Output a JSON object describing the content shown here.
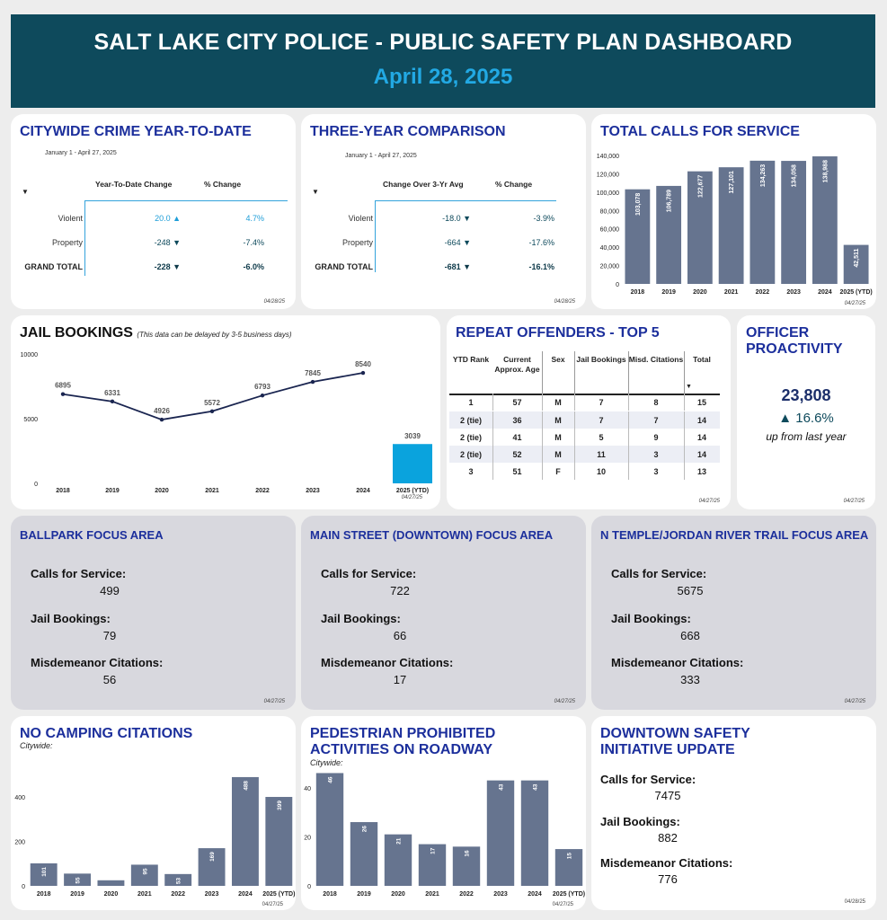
{
  "header": {
    "title": "SALT LAKE CITY POLICE - PUBLIC SAFETY PLAN DASHBOARD",
    "date": "April 28, 2025"
  },
  "ytd": {
    "title": "CITYWIDE CRIME YEAR-TO-DATE",
    "range": "January 1 - April 27, 2025",
    "col1": "Year-To-Date Change",
    "col2": "% Change",
    "rows": [
      {
        "label": "Violent",
        "change": "20.0",
        "pct": "4.7%",
        "dir": "up"
      },
      {
        "label": "Property",
        "change": "-248",
        "pct": "-7.4%",
        "dir": "down"
      },
      {
        "label": "GRAND TOTAL",
        "change": "-228",
        "pct": "-6.0%",
        "dir": "down"
      }
    ],
    "footer": "04/28/25"
  },
  "threeyr": {
    "title": "THREE-YEAR COMPARISON",
    "range": "January 1 - April 27, 2025",
    "col1": "Change Over 3-Yr Avg",
    "col2": "% Change",
    "rows": [
      {
        "label": "Violent",
        "change": "-18.0",
        "pct": "-3.9%",
        "dir": "down"
      },
      {
        "label": "Property",
        "change": "-664",
        "pct": "-17.6%",
        "dir": "down"
      },
      {
        "label": "GRAND TOTAL",
        "change": "-681",
        "pct": "-16.1%",
        "dir": "down"
      }
    ],
    "footer": "04/28/25"
  },
  "repeat": {
    "title": "REPEAT OFFENDERS - TOP 5",
    "headers": [
      "YTD Rank",
      "Current Approx. Age",
      "Sex",
      "Jail Bookings",
      "Misd. Citations",
      "Total"
    ],
    "rows": [
      [
        "1",
        "57",
        "M",
        "7",
        "8",
        "15"
      ],
      [
        "2 (tie)",
        "36",
        "M",
        "7",
        "7",
        "14"
      ],
      [
        "2 (tie)",
        "41",
        "M",
        "5",
        "9",
        "14"
      ],
      [
        "2 (tie)",
        "52",
        "M",
        "11",
        "3",
        "14"
      ],
      [
        "3",
        "51",
        "F",
        "10",
        "3",
        "13"
      ]
    ],
    "footer": "04/27/25"
  },
  "proactivity": {
    "title": "OFFICER PROACTIVITY",
    "value": "23,808",
    "change": "▲ 16.6%",
    "note": "up from last year",
    "footer": "04/27/25"
  },
  "focus_areas": [
    {
      "title": "BALLPARK FOCUS AREA",
      "calls_label": "Calls for Service:",
      "calls": "499",
      "book_label": "Jail Bookings:",
      "bookings": "79",
      "cit_label": "Misdemeanor Citations:",
      "citations": "56",
      "footer": "04/27/25"
    },
    {
      "title": "MAIN STREET (DOWNTOWN) FOCUS AREA",
      "calls_label": "Calls for Service:",
      "calls": "722",
      "book_label": "Jail Bookings:",
      "bookings": "66",
      "cit_label": "Misdemeanor Citations:",
      "citations": "17",
      "footer": "04/27/25"
    },
    {
      "title": "N TEMPLE/JORDAN RIVER TRAIL FOCUS AREA",
      "calls_label": "Calls for Service:",
      "calls": "5675",
      "book_label": "Jail Bookings:",
      "bookings": "668",
      "cit_label": "Misdemeanor Citations:",
      "citations": "333",
      "footer": "04/27/25"
    }
  ],
  "downtown": {
    "title": "DOWNTOWN SAFETY INITIATIVE UPDATE",
    "calls_label": "Calls for Service:",
    "calls": "7475",
    "book_label": "Jail Bookings:",
    "bookings": "882",
    "cit_label": "Misdemeanor Citations:",
    "citations": "776",
    "footer": "04/28/25"
  },
  "chart_data": [
    {
      "id": "calls",
      "type": "bar",
      "title": "TOTAL CALLS FOR SERVICE",
      "categories": [
        "2018",
        "2019",
        "2020",
        "2021",
        "2022",
        "2023",
        "2024",
        "2025 (YTD)"
      ],
      "values": [
        103078,
        106789,
        122677,
        127101,
        134263,
        134058,
        138988,
        42511
      ],
      "labels": [
        "103,078",
        "106,789",
        "122,677",
        "127,101",
        "134,263",
        "134,058",
        "138,988",
        "42,511"
      ],
      "yticks": [
        "0",
        "20,000",
        "40,000",
        "60,000",
        "80,000",
        "100,000",
        "120,000",
        "140,000"
      ],
      "ylim": [
        0,
        140000
      ],
      "color": "#66748f",
      "footer": "04/27/25"
    },
    {
      "id": "jail",
      "type": "line",
      "title": "JAIL BOOKINGS",
      "subtitle": "(This data can be delayed by 3-5 business days)",
      "categories": [
        "2018",
        "2019",
        "2020",
        "2021",
        "2022",
        "2023",
        "2024"
      ],
      "values": [
        6895,
        6331,
        4926,
        5572,
        6793,
        7845,
        8540
      ],
      "ytd_category": "2025 (YTD)",
      "ytd_value": 3039,
      "yticks": [
        "0",
        "5000",
        "10000"
      ],
      "ylim": [
        0,
        10000
      ],
      "line_color": "#1a2550",
      "bar_color": "#0aa3dd",
      "footer": "04/27/25"
    },
    {
      "id": "camping",
      "type": "bar",
      "title": "NO CAMPING CITATIONS",
      "subtitle": "Citywide:",
      "categories": [
        "2018",
        "2019",
        "2020",
        "2021",
        "2022",
        "2023",
        "2024",
        "2025 (YTD)"
      ],
      "values": [
        101,
        55,
        25,
        95,
        53,
        169,
        488,
        399
      ],
      "labels": [
        "101",
        "55",
        "",
        "95",
        "53",
        "169",
        "488",
        "399"
      ],
      "yticks": [
        "0",
        "200",
        "400"
      ],
      "ylim": [
        0,
        520
      ],
      "color": "#66748f",
      "footer": "04/27/25"
    },
    {
      "id": "pedestrian",
      "type": "bar",
      "title": "PEDESTRIAN PROHIBITED ACTIVITIES ON ROADWAY",
      "subtitle": "Citywide:",
      "categories": [
        "2018",
        "2019",
        "2020",
        "2021",
        "2022",
        "2023",
        "2024",
        "2025 (YTD)"
      ],
      "values": [
        46,
        26,
        21,
        17,
        16,
        43,
        43,
        15
      ],
      "labels": [
        "46",
        "26",
        "21",
        "17",
        "16",
        "43",
        "43",
        "15"
      ],
      "yticks": [
        "0",
        "20",
        "40"
      ],
      "ylim": [
        0,
        48
      ],
      "color": "#66748f",
      "footer": "04/27/25"
    }
  ]
}
